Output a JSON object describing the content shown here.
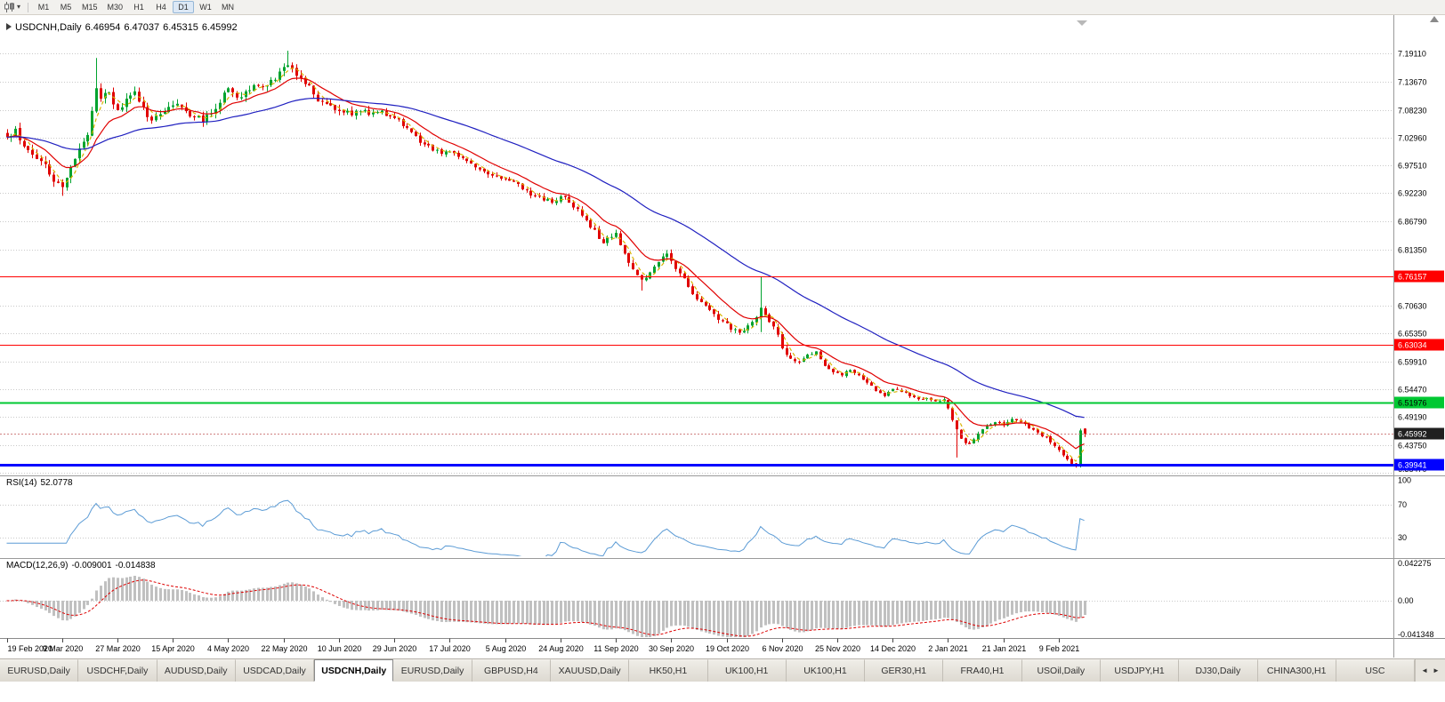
{
  "toolbar": {
    "timeframes": [
      "M1",
      "M5",
      "M15",
      "M30",
      "H1",
      "H4",
      "D1",
      "W1",
      "MN"
    ],
    "active_timeframe": "D1"
  },
  "chart": {
    "title_text": "USDCNH,Daily",
    "ohlc": {
      "open": "6.46954",
      "high": "6.47037",
      "low": "6.45315",
      "close": "6.45992"
    }
  },
  "rsi": {
    "label": "RSI(14)",
    "value": "52.0778",
    "scale_labels": [
      "100",
      "70",
      "30"
    ]
  },
  "macd": {
    "label": "MACD(12,26,9)",
    "main_value": "-0.009001",
    "signal_value": "-0.014838",
    "scale_labels": [
      "0.042275",
      "0.00",
      "-0.041348"
    ]
  },
  "tabs": {
    "items": [
      "EURUSD,Daily",
      "USDCHF,Daily",
      "AUDUSD,Daily",
      "USDCAD,Daily",
      "USDCNH,Daily",
      "EURUSD,Daily",
      "GBPUSD,H4",
      "XAUUSD,Daily",
      "HK50,H1",
      "UK100,H1",
      "UK100,H1",
      "GER30,H1",
      "FRA40,H1",
      "USOil,Daily",
      "USDJPY,H1",
      "DJ30,Daily",
      "CHINA300,H1",
      "USC"
    ],
    "active_index": 4,
    "scroll_left_icon": "◄",
    "scroll_right_icon": "►"
  },
  "chart_data": {
    "type": "candlestick",
    "symbol": "USDCNH",
    "timeframe": "Daily",
    "bars": 254,
    "ylim": [
      6.383,
      7.256
    ],
    "price_scale_labels": [
      "7.19110",
      "7.13670",
      "7.08230",
      "7.02960",
      "6.97510",
      "6.92230",
      "6.86790",
      "6.81350",
      "6.70630",
      "6.65350",
      "6.59910",
      "6.54470",
      "6.49190",
      "6.43750",
      "6.38470"
    ],
    "date_labels": [
      "19 Feb 2020",
      "9 Mar 2020",
      "27 Mar 2020",
      "15 Apr 2020",
      "4 May 2020",
      "22 May 2020",
      "10 Jun 2020",
      "29 Jun 2020",
      "17 Jul 2020",
      "5 Aug 2020",
      "24 Aug 2020",
      "11 Sep 2020",
      "30 Sep 2020",
      "19 Oct 2020",
      "6 Nov 2020",
      "25 Nov 2020",
      "14 Dec 2020",
      "2 Jan 2021",
      "21 Jan 2021",
      "9 Feb 2021"
    ],
    "bars_per_date_label": 13,
    "close_anchors": [
      [
        0,
        7.03
      ],
      [
        2,
        7.046
      ],
      [
        4,
        7.012
      ],
      [
        6,
        6.996
      ],
      [
        8,
        6.984
      ],
      [
        10,
        6.958
      ],
      [
        12,
        6.942
      ],
      [
        13,
        6.934
      ],
      [
        15,
        6.972
      ],
      [
        17,
        7.008
      ],
      [
        19,
        7.034
      ],
      [
        20,
        7.08
      ],
      [
        21,
        7.124
      ],
      [
        22,
        7.104
      ],
      [
        24,
        7.116
      ],
      [
        26,
        7.082
      ],
      [
        28,
        7.104
      ],
      [
        30,
        7.118
      ],
      [
        32,
        7.088
      ],
      [
        34,
        7.062
      ],
      [
        36,
        7.074
      ],
      [
        38,
        7.088
      ],
      [
        40,
        7.094
      ],
      [
        42,
        7.08
      ],
      [
        44,
        7.068
      ],
      [
        46,
        7.058
      ],
      [
        48,
        7.076
      ],
      [
        50,
        7.096
      ],
      [
        52,
        7.124
      ],
      [
        54,
        7.106
      ],
      [
        56,
        7.118
      ],
      [
        58,
        7.13
      ],
      [
        60,
        7.126
      ],
      [
        62,
        7.14
      ],
      [
        64,
        7.156
      ],
      [
        66,
        7.168
      ],
      [
        68,
        7.148
      ],
      [
        70,
        7.132
      ],
      [
        72,
        7.112
      ],
      [
        75,
        7.094
      ],
      [
        78,
        7.08
      ],
      [
        81,
        7.072
      ],
      [
        84,
        7.082
      ],
      [
        87,
        7.078
      ],
      [
        90,
        7.07
      ],
      [
        92,
        7.064
      ],
      [
        94,
        7.048
      ],
      [
        96,
        7.032
      ],
      [
        98,
        7.016
      ],
      [
        100,
        7.004
      ],
      [
        102,
        6.998
      ],
      [
        104,
        7.002
      ],
      [
        106,
        6.992
      ],
      [
        108,
        6.984
      ],
      [
        110,
        6.972
      ],
      [
        112,
        6.964
      ],
      [
        114,
        6.956
      ],
      [
        116,
        6.95
      ],
      [
        118,
        6.946
      ],
      [
        120,
        6.94
      ],
      [
        122,
        6.928
      ],
      [
        124,
        6.916
      ],
      [
        126,
        6.908
      ],
      [
        128,
        6.904
      ],
      [
        130,
        6.916
      ],
      [
        132,
        6.904
      ],
      [
        134,
        6.892
      ],
      [
        136,
        6.87
      ],
      [
        138,
        6.852
      ],
      [
        140,
        6.826
      ],
      [
        142,
        6.838
      ],
      [
        143,
        6.846
      ],
      [
        145,
        6.806
      ],
      [
        147,
        6.776
      ],
      [
        149,
        6.756
      ],
      [
        151,
        6.77
      ],
      [
        153,
        6.79
      ],
      [
        155,
        6.806
      ],
      [
        156,
        6.792
      ],
      [
        158,
        6.768
      ],
      [
        160,
        6.742
      ],
      [
        162,
        6.718
      ],
      [
        164,
        6.706
      ],
      [
        166,
        6.69
      ],
      [
        168,
        6.676
      ],
      [
        170,
        6.66
      ],
      [
        172,
        6.654
      ],
      [
        174,
        6.668
      ],
      [
        176,
        6.684
      ],
      [
        177,
        6.702
      ],
      [
        178,
        6.688
      ],
      [
        180,
        6.666
      ],
      [
        182,
        6.624
      ],
      [
        184,
        6.604
      ],
      [
        186,
        6.598
      ],
      [
        188,
        6.612
      ],
      [
        190,
        6.618
      ],
      [
        192,
        6.59
      ],
      [
        194,
        6.578
      ],
      [
        196,
        6.572
      ],
      [
        198,
        6.582
      ],
      [
        200,
        6.572
      ],
      [
        202,
        6.558
      ],
      [
        204,
        6.542
      ],
      [
        206,
        6.532
      ],
      [
        208,
        6.546
      ],
      [
        210,
        6.54
      ],
      [
        212,
        6.532
      ],
      [
        214,
        6.526
      ],
      [
        216,
        6.528
      ],
      [
        218,
        6.522
      ],
      [
        220,
        6.526
      ],
      [
        222,
        6.486
      ],
      [
        224,
        6.45
      ],
      [
        226,
        6.44
      ],
      [
        228,
        6.46
      ],
      [
        230,
        6.474
      ],
      [
        232,
        6.482
      ],
      [
        234,
        6.476
      ],
      [
        236,
        6.488
      ],
      [
        238,
        6.482
      ],
      [
        240,
        6.47
      ],
      [
        242,
        6.462
      ],
      [
        244,
        6.454
      ],
      [
        246,
        6.436
      ],
      [
        248,
        6.418
      ],
      [
        250,
        6.402
      ],
      [
        251,
        6.397
      ],
      [
        252,
        6.466
      ],
      [
        253,
        6.45992
      ]
    ],
    "spikes": [
      {
        "b": 13,
        "low": 6.917
      },
      {
        "b": 21,
        "high": 7.182
      },
      {
        "b": 66,
        "high": 7.196
      },
      {
        "b": 149,
        "low": 6.735
      },
      {
        "b": 177,
        "high": 6.7615,
        "low": 6.655
      },
      {
        "b": 223,
        "low": 6.414
      },
      {
        "b": 251,
        "low": 6.3945
      },
      {
        "b": 252,
        "low": 6.405
      }
    ],
    "last_bar": {
      "o": 6.46954,
      "h": 6.47037,
      "l": 6.45315,
      "c": 6.45992
    },
    "key_levels": [
      {
        "value": 6.76157,
        "label": "6.76157",
        "color": "#FF0000",
        "text_color": "#FFFFFF",
        "width": 1
      },
      {
        "value": 6.63034,
        "label": "6.63034",
        "color": "#FF0000",
        "text_color": "#FFFFFF",
        "width": 1
      },
      {
        "value": 6.51976,
        "label": "6.51976",
        "color": "#00C832",
        "text_color": "#000000",
        "width": 2
      },
      {
        "value": 6.39941,
        "label": "6.39941",
        "color": "#0000FF",
        "text_color": "#FFFFFF",
        "width": 3
      }
    ],
    "current_price": {
      "value": 6.45992,
      "label": "6.45992",
      "badge_color": "#202020",
      "text_color": "#FFFFFF"
    },
    "moving_averages": [
      {
        "period": 4,
        "type": "sma",
        "color": "#D9B300",
        "dash": "4,3"
      },
      {
        "period": 12,
        "type": "ema",
        "color": "#E00000",
        "dash": ""
      },
      {
        "period": 50,
        "type": "ema",
        "color": "#2020C0",
        "dash": ""
      }
    ],
    "colors": {
      "up": "#00A32E",
      "down": "#E00000",
      "grid": "#c9c9c9",
      "rsi_line": "#5B9BD5",
      "macd_hist": "#c0c0c0",
      "macd_signal": "#DD0000"
    },
    "rsi_period": 14,
    "rsi_levels": [
      70,
      30
    ],
    "macd_params": [
      12,
      26,
      9
    ],
    "macd_scale": [
      0.042275,
      0,
      -0.041348
    ],
    "seed": 20210219
  }
}
